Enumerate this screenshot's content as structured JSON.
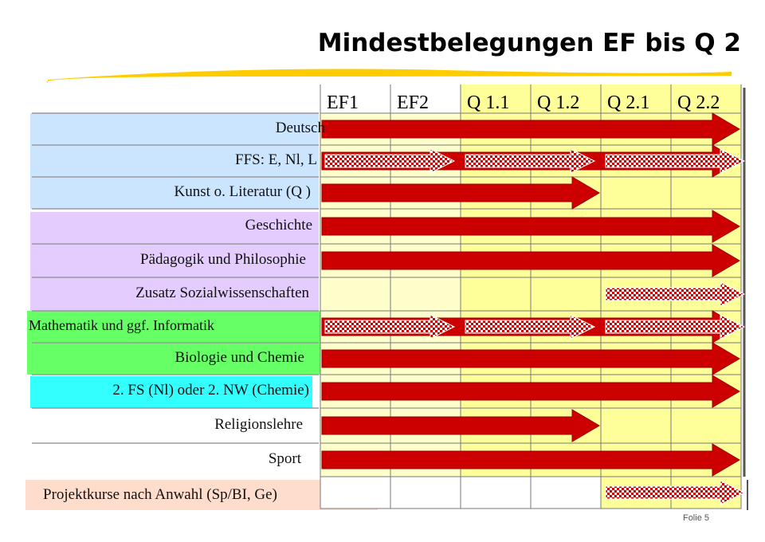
{
  "slide": {
    "title": "Mindestbelegungen EF bis Q 2",
    "folio": "Folie 5"
  },
  "columns": [
    "EF1",
    "EF2",
    "Q 1.1",
    "Q 1.2",
    "Q 2.1",
    "Q 2.2"
  ],
  "colors": {
    "cell_light": "#FFFFCC",
    "cell_yellow": "#FFFF99",
    "grid": "#7A7A7A",
    "arrow": "#CC0000",
    "arrow_edge": "#990000",
    "band_blue": "#CCE5FF",
    "band_violet": "#E5CCFF",
    "band_green": "#66FF66",
    "band_cyan": "#33FFFF",
    "band_peach": "#FFDDCC",
    "title_underline": "#FFCC00"
  },
  "rows": [
    {
      "label": "Deutsch",
      "band": "blue",
      "arrows": [
        {
          "type": "solid",
          "from": 0,
          "to": 6
        }
      ]
    },
    {
      "label": "FFS: E, Nl, L",
      "band": "blue",
      "arrows": [
        {
          "type": "solid",
          "from": 0,
          "to": 6
        },
        {
          "type": "hatched",
          "from": 0,
          "to": 2
        },
        {
          "type": "hatched",
          "from": 2,
          "to": 4
        },
        {
          "type": "hatched",
          "from": 4,
          "to": 6
        }
      ]
    },
    {
      "label": "Kunst o. Literatur (Q )",
      "band": "blue",
      "arrows": [
        {
          "type": "solid",
          "from": 0,
          "to": 4
        }
      ]
    },
    {
      "label": "Geschichte",
      "band": "violet",
      "arrows": [
        {
          "type": "solid",
          "from": 0,
          "to": 6
        }
      ]
    },
    {
      "label": "Pädagogik und Philosophie",
      "band": "violet",
      "arrows": [
        {
          "type": "solid",
          "from": 0,
          "to": 6
        }
      ]
    },
    {
      "label": "Zusatz Sozialwissenschaften",
      "band": "violet",
      "arrows": [
        {
          "type": "hatched",
          "from": 4,
          "to": 6
        }
      ]
    },
    {
      "label": "Mathematik und ggf. Informatik",
      "band": "green",
      "arrows": [
        {
          "type": "solid",
          "from": 0,
          "to": 6
        },
        {
          "type": "hatched",
          "from": 0,
          "to": 2
        },
        {
          "type": "hatched",
          "from": 2,
          "to": 4
        },
        {
          "type": "hatched",
          "from": 4,
          "to": 6
        }
      ]
    },
    {
      "label": "Biologie und Chemie",
      "band": "green",
      "arrows": [
        {
          "type": "solid",
          "from": 0,
          "to": 6
        }
      ]
    },
    {
      "label": "2. FS (Nl) oder 2. NW (Chemie)",
      "band": "cyan",
      "arrows": [
        {
          "type": "solid",
          "from": 0,
          "to": 6
        }
      ]
    },
    {
      "label": "Religionslehre",
      "band": "none",
      "arrows": [
        {
          "type": "solid",
          "from": 0,
          "to": 4
        }
      ]
    },
    {
      "label": "Sport",
      "band": "none",
      "arrows": [
        {
          "type": "solid",
          "from": 0,
          "to": 6
        }
      ]
    },
    {
      "label": "Projektkurse nach Anwahl (Sp/BI, Ge)",
      "band": "peach",
      "arrows": [
        {
          "type": "hatched",
          "from": 4,
          "to": 6
        }
      ]
    }
  ]
}
